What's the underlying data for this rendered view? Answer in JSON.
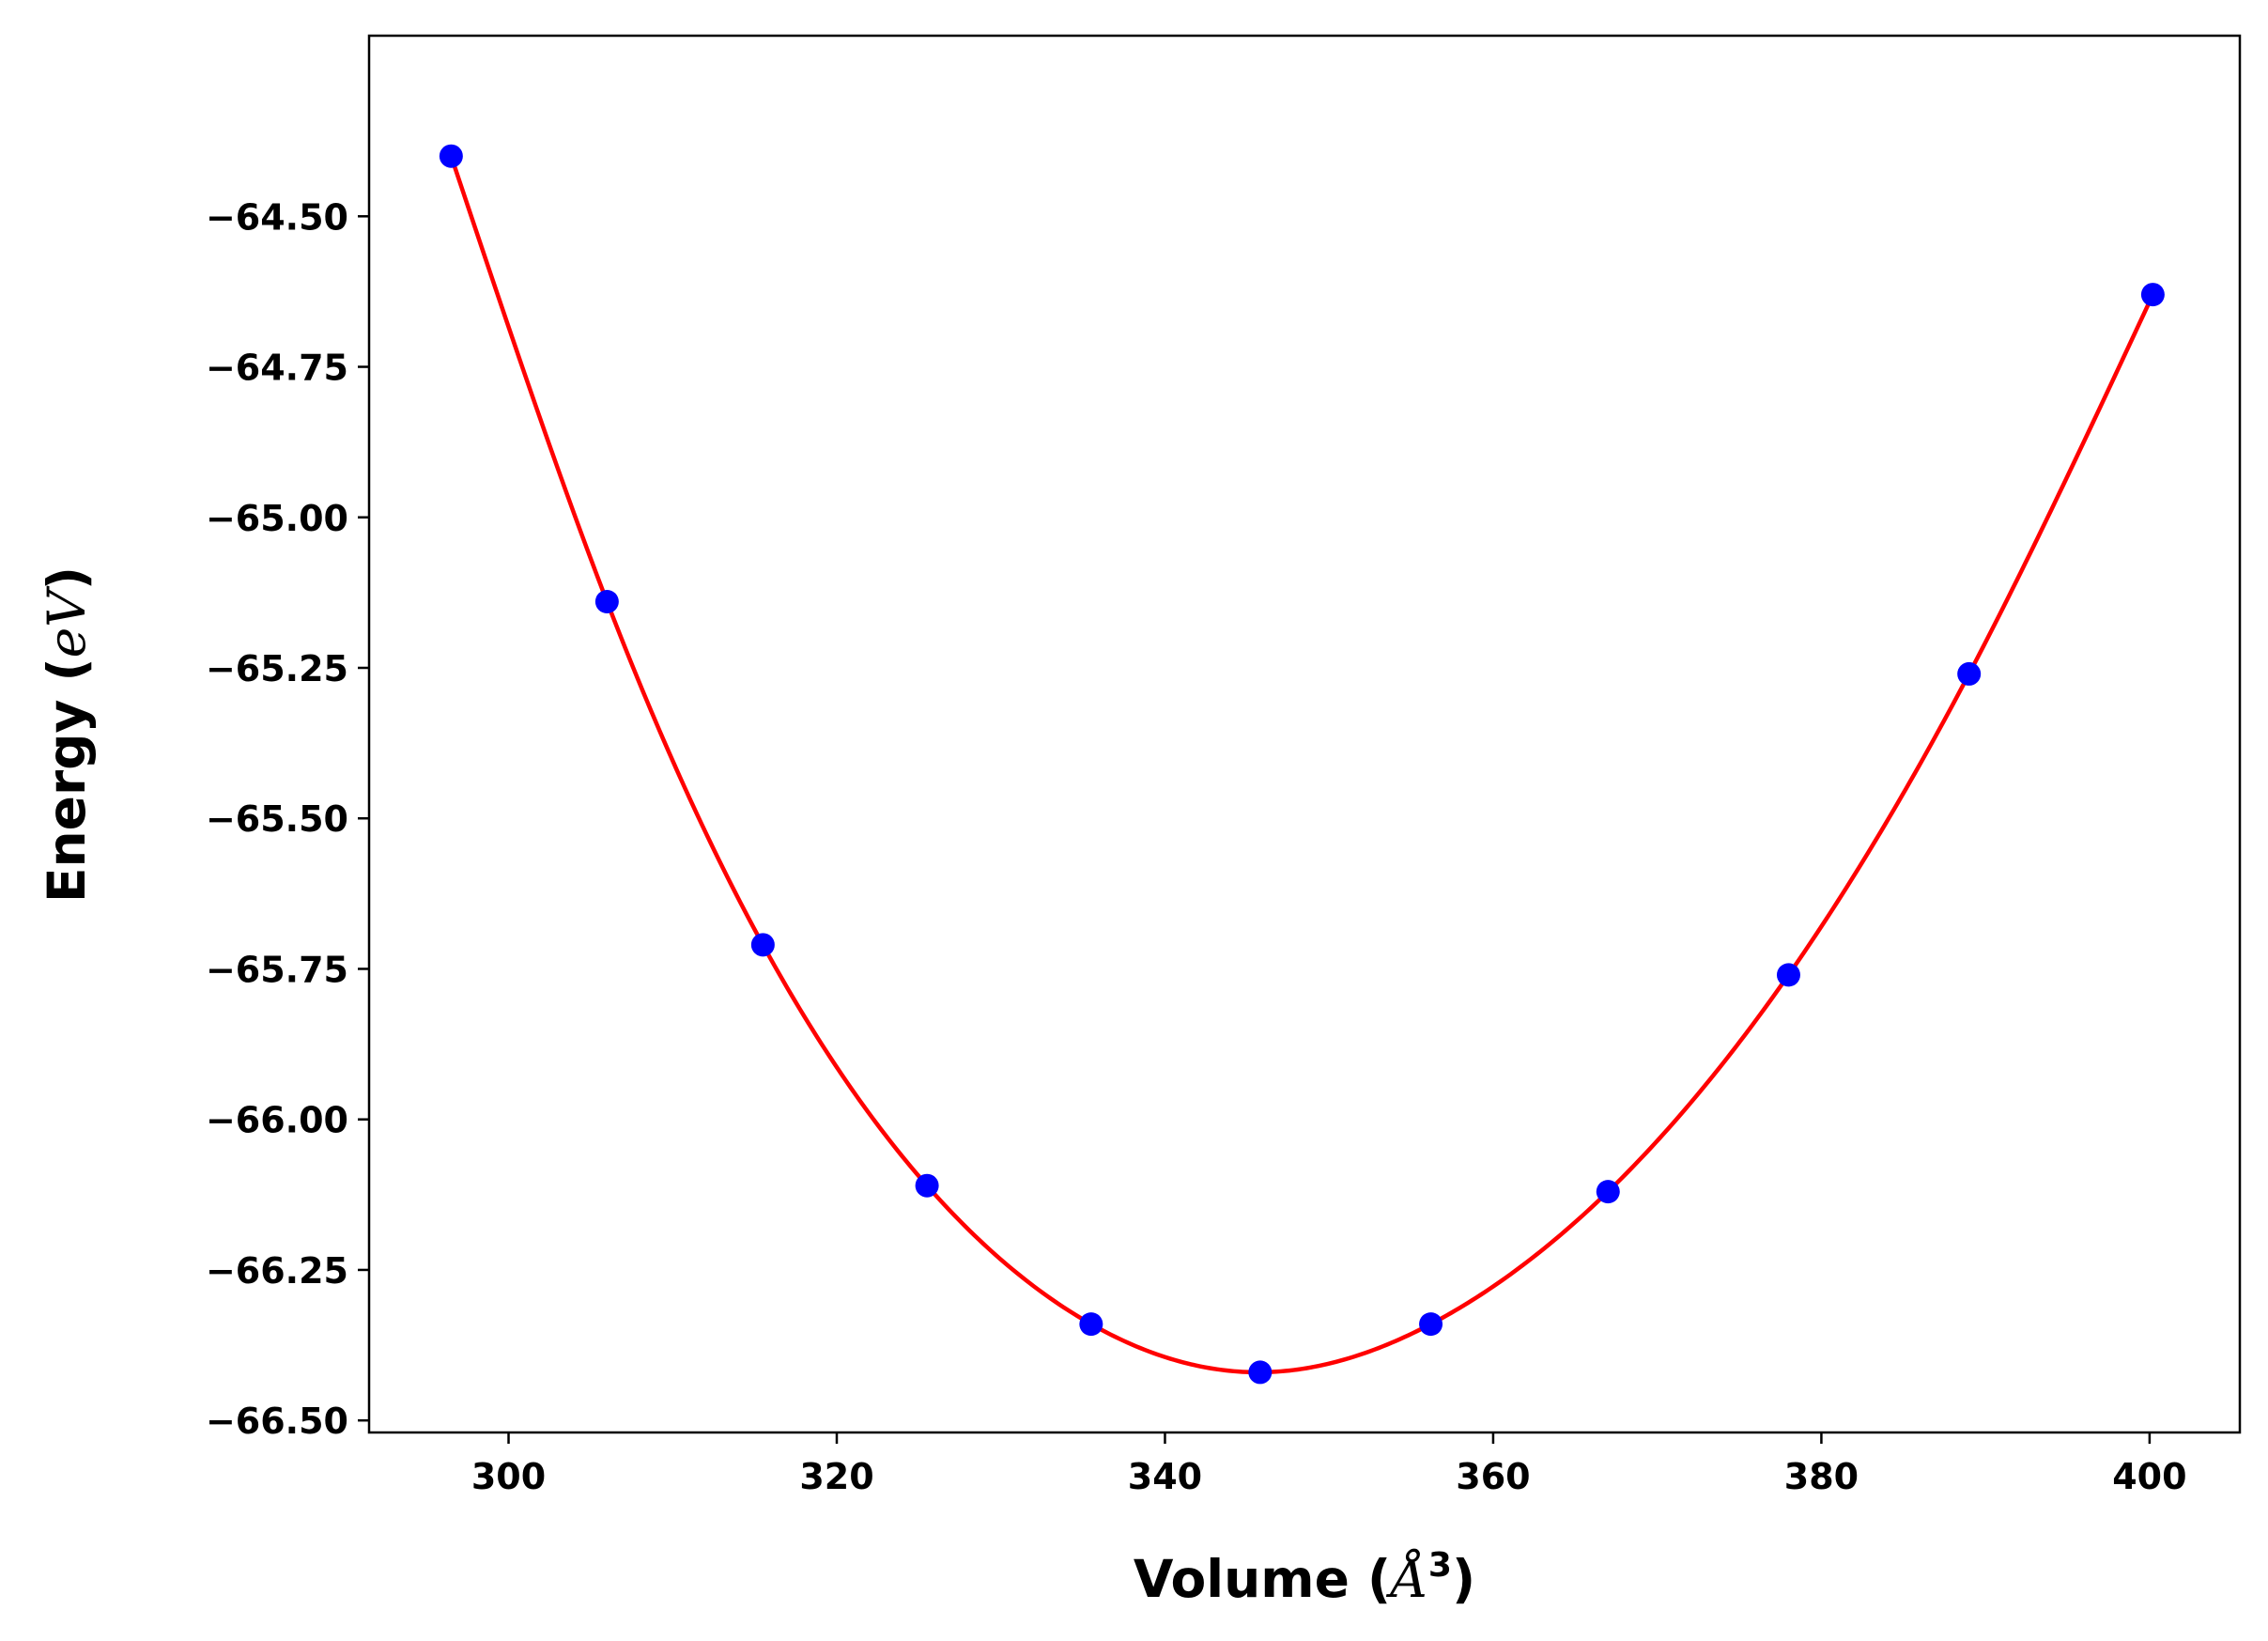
{
  "chart_data": {
    "type": "line",
    "xlabel": {
      "prefix": "Volume (",
      "math": "Å",
      "superscript": "3",
      "suffix": ")"
    },
    "ylabel": {
      "prefix": "Energy (",
      "math": "eV",
      "suffix": ")"
    },
    "xlim": [
      291.5,
      405.5
    ],
    "ylim": [
      -66.52,
      -64.2
    ],
    "xticks": [
      300,
      320,
      340,
      360,
      380,
      400
    ],
    "yticks": [
      -64.5,
      -64.75,
      -65.0,
      -65.25,
      -65.5,
      -65.75,
      -66.0,
      -66.25,
      -66.5
    ],
    "xtick_labels": [
      "300",
      "320",
      "340",
      "360",
      "380",
      "400"
    ],
    "ytick_labels": [
      "−64.50",
      "−64.75",
      "−65.00",
      "−65.25",
      "−65.50",
      "−65.75",
      "−66.00",
      "−66.25",
      "−66.50"
    ],
    "grid": false,
    "series": [
      {
        "kind": "fit-line",
        "color": "#ff0000",
        "x": [
          296.5,
          306.0,
          315.5,
          325.5,
          335.5,
          345.8,
          356.2,
          367.0,
          378.0,
          389.0,
          400.2
        ],
        "y": [
          -64.4,
          -65.14,
          -65.71,
          -66.11,
          -66.34,
          -66.42,
          -66.34,
          -66.12,
          -65.76,
          -65.26,
          -64.63
        ]
      },
      {
        "kind": "points",
        "color": "#0000ff",
        "x": [
          296.5,
          306.0,
          315.5,
          325.5,
          335.5,
          345.8,
          356.2,
          367.0,
          378.0,
          389.0,
          400.2
        ],
        "y": [
          -64.4,
          -65.14,
          -65.71,
          -66.11,
          -66.34,
          -66.42,
          -66.34,
          -66.12,
          -65.76,
          -65.26,
          -64.63
        ]
      }
    ]
  }
}
